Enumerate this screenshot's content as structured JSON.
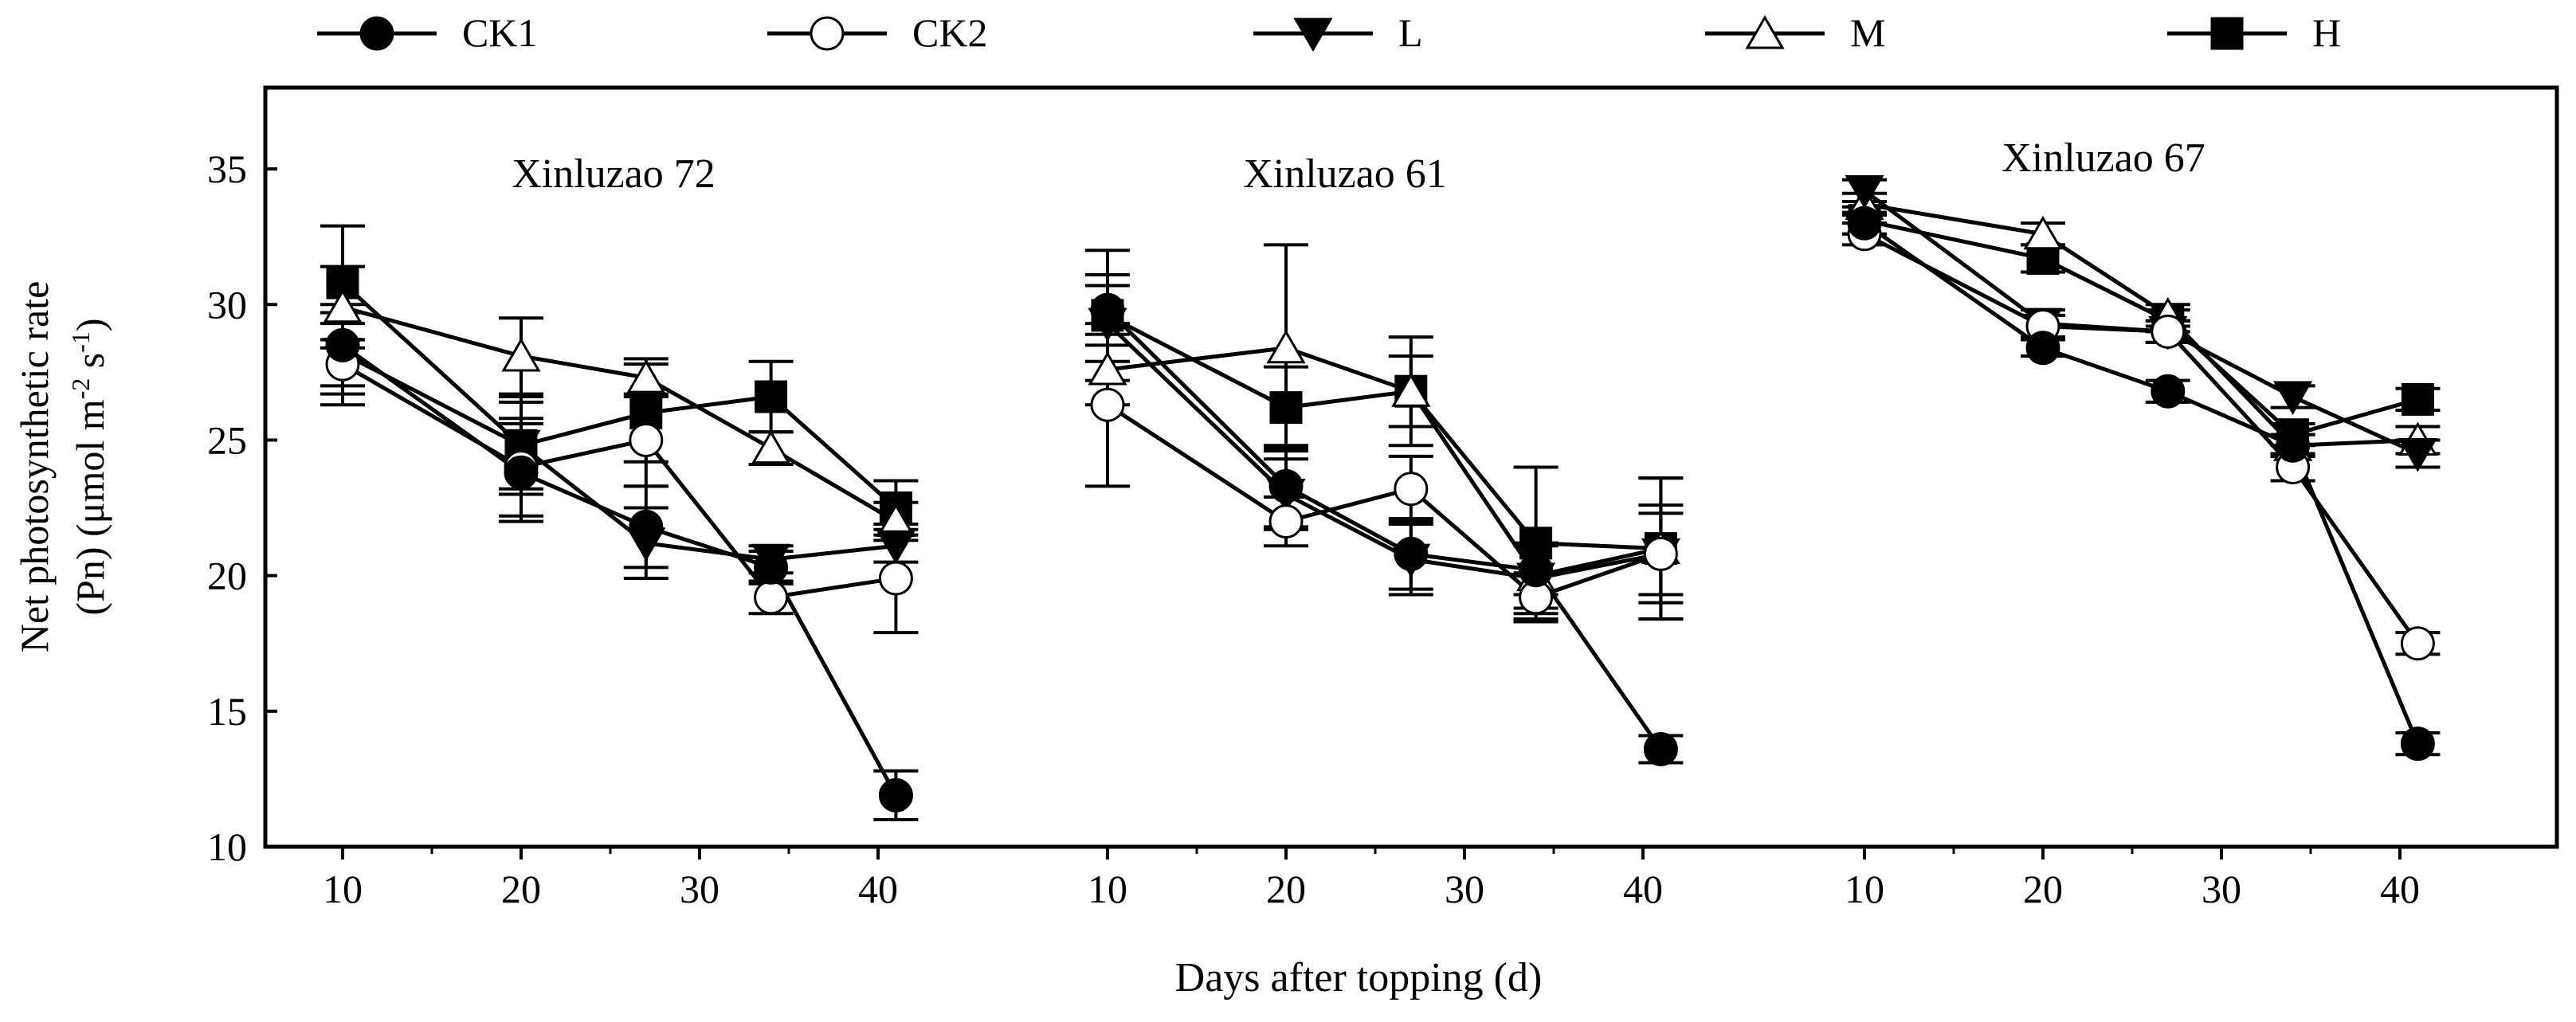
{
  "chart_data": {
    "type": "line",
    "ylabel_line1": "Net photosynthetic rate",
    "ylabel_line2_prefix": "(Pn)  (μmol m",
    "ylabel_sup1": "-2",
    "ylabel_mid": " s",
    "ylabel_sup2": "-1",
    "ylabel_suffix": ")",
    "xlabel": "Days after topping (d)",
    "ylim": [
      10,
      38
    ],
    "yticks": [
      10,
      15,
      20,
      25,
      30,
      35
    ],
    "xticks": [
      10,
      20,
      30,
      40
    ],
    "x": [
      10,
      20,
      27,
      34,
      41
    ],
    "legend": [
      {
        "key": "CK1",
        "label": "CK1"
      },
      {
        "key": "CK2",
        "label": "CK2"
      },
      {
        "key": "L",
        "label": "L"
      },
      {
        "key": "M",
        "label": "M"
      },
      {
        "key": "H",
        "label": "H"
      }
    ],
    "panels": [
      {
        "title": "Xinluzao 72",
        "series": [
          {
            "name": "CK1",
            "values": [
              28.5,
              23.8,
              21.8,
              20.3,
              11.9
            ],
            "errors": [
              1.5,
              1.8,
              1.5,
              0.6,
              0.9
            ]
          },
          {
            "name": "CK2",
            "values": [
              27.8,
              24.0,
              25.0,
              19.2,
              19.9
            ],
            "errors": [
              1.5,
              1.8,
              1.7,
              0.6,
              2.0
            ]
          },
          {
            "name": "L",
            "values": [
              28.2,
              24.8,
              21.2,
              20.6,
              21.1
            ],
            "errors": [
              1.5,
              1.6,
              1.3,
              0.5,
              0.6
            ]
          },
          {
            "name": "M",
            "values": [
              29.9,
              28.1,
              27.3,
              24.7,
              22.0
            ],
            "errors": [
              1.5,
              1.4,
              0.7,
              0.6,
              0.7
            ]
          },
          {
            "name": "H",
            "values": [
              30.8,
              24.8,
              26.0,
              26.6,
              22.5
            ],
            "errors": [
              2.1,
              1.8,
              1.8,
              1.3,
              1.0
            ]
          }
        ]
      },
      {
        "title": "Xinluzao 61",
        "series": [
          {
            "name": "CK1",
            "values": [
              29.8,
              23.3,
              20.8,
              20.2,
              13.6
            ],
            "errors": [
              1.3,
              1.5,
              1.3,
              0.9,
              0.5
            ]
          },
          {
            "name": "CK2",
            "values": [
              26.3,
              22.0,
              23.2,
              19.2,
              20.8
            ],
            "errors": [
              3.0,
              0.9,
              1.2,
              0.9,
              1.5
            ]
          },
          {
            "name": "L",
            "values": [
              29.3,
              23.0,
              20.6,
              19.9,
              20.8
            ],
            "errors": [
              1.4,
              1.3,
              1.3,
              1.3,
              1.8
            ]
          },
          {
            "name": "M",
            "values": [
              27.6,
              28.4,
              26.8,
              20.0,
              21.0
            ],
            "errors": [
              1.3,
              3.8,
              1.3,
              1.2,
              2.6
            ]
          },
          {
            "name": "H",
            "values": [
              29.6,
              26.2,
              26.8,
              21.2,
              21.0
            ],
            "errors": [
              2.4,
              1.5,
              2.0,
              2.8,
              2.6
            ]
          }
        ]
      },
      {
        "title": "Xinluzao 67",
        "series": [
          {
            "name": "CK1",
            "values": [
              33.0,
              28.4,
              26.8,
              24.8,
              13.8
            ],
            "errors": [
              0.4,
              0.3,
              0.4,
              0.4,
              0.4
            ]
          },
          {
            "name": "CK2",
            "values": [
              32.6,
              29.2,
              29.0,
              24.0,
              17.5
            ],
            "errors": [
              0.4,
              0.4,
              0.4,
              0.5,
              0.4
            ]
          },
          {
            "name": "L",
            "values": [
              34.2,
              29.3,
              29.0,
              26.6,
              24.5
            ],
            "errors": [
              0.4,
              0.5,
              0.4,
              0.4,
              0.5
            ]
          },
          {
            "name": "M",
            "values": [
              33.7,
              32.6,
              29.6,
              24.8,
              25.0
            ],
            "errors": [
              0.4,
              0.4,
              0.4,
              0.4,
              0.5
            ]
          },
          {
            "name": "H",
            "values": [
              33.1,
              31.7,
              29.4,
              25.2,
              26.5
            ],
            "errors": [
              0.5,
              0.5,
              0.4,
              0.4,
              0.4
            ]
          }
        ]
      }
    ]
  }
}
